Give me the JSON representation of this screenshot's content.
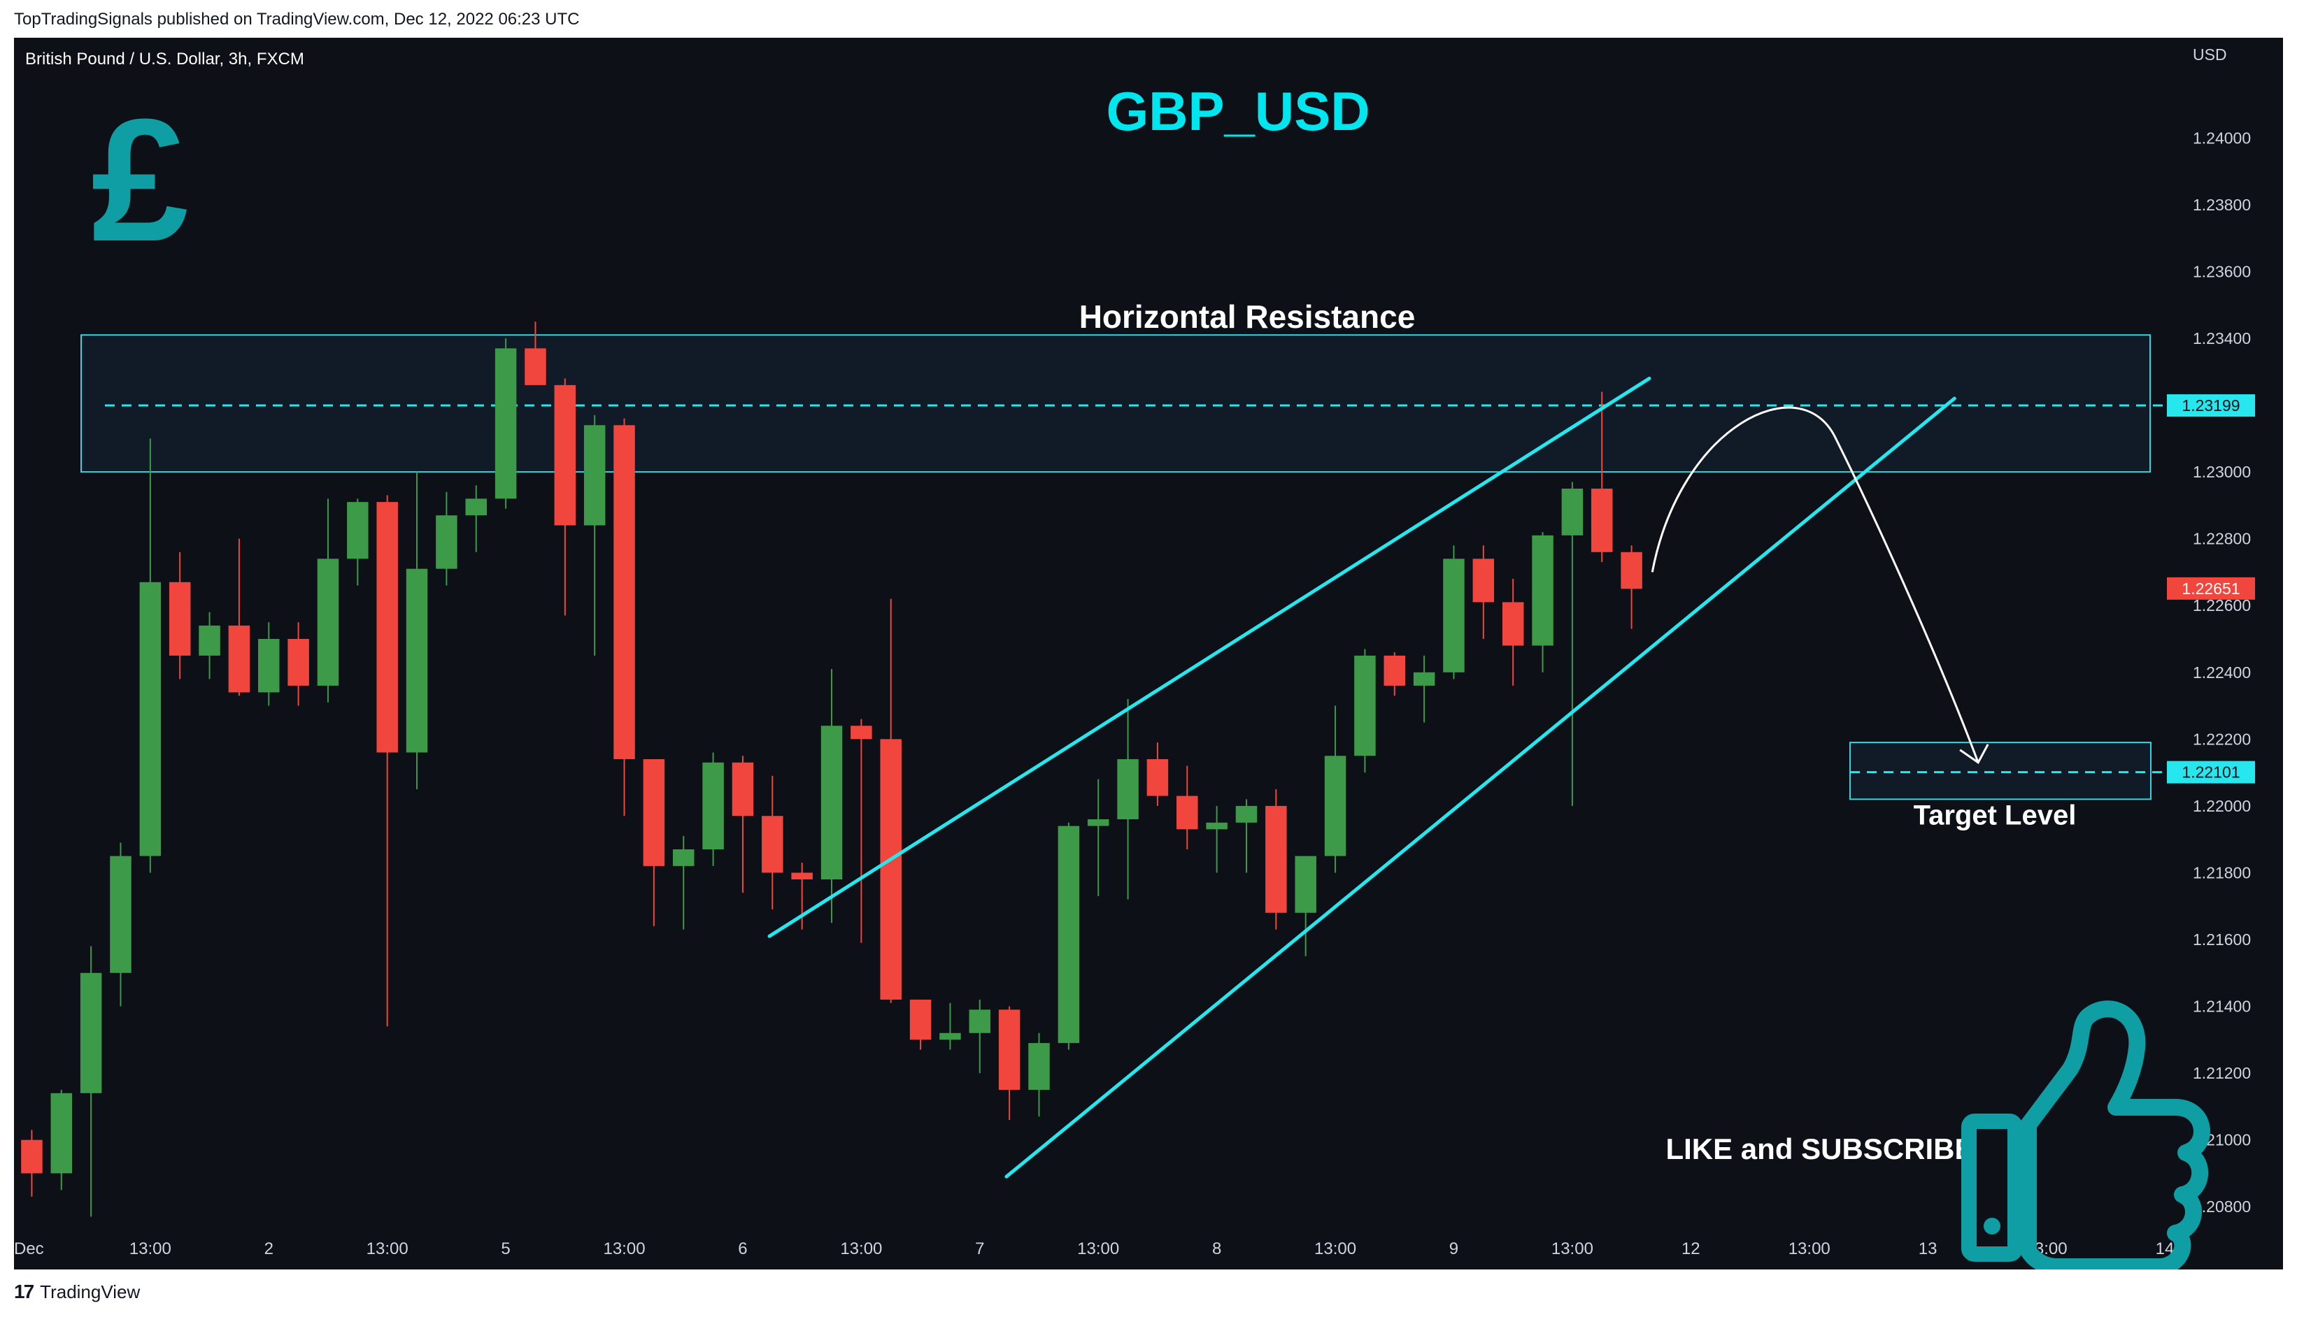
{
  "header": {
    "published_line": "TopTradingSignals published on TradingView.com, Dec 12, 2022 06:23 UTC"
  },
  "footer": {
    "brand_logo": "17",
    "brand_name": "TradingView"
  },
  "colors": {
    "background": "#0d1016",
    "up_candle": "#3d9a48",
    "down_candle": "#f0463e",
    "channel_line": "#27e7ee",
    "zone_border": "#33d6e0",
    "title_color": "#00e6ef",
    "icon_color": "#0f9ea3"
  },
  "chart_data": {
    "type": "candlestick",
    "symbol": "British Pound / U.S. Dollar, 3h, FXCM",
    "title": "GBP_USD",
    "currency": "USD",
    "ylim": [
      1.207,
      1.243
    ],
    "y_ticks": [
      1.208,
      1.21,
      1.212,
      1.214,
      1.216,
      1.218,
      1.22,
      1.222,
      1.224,
      1.226,
      1.228,
      1.23,
      1.232,
      1.234,
      1.236,
      1.238,
      1.24
    ],
    "y_tick_labels": [
      "1.20800",
      "1.21000",
      "1.21200",
      "1.21400",
      "1.21600",
      "1.21800",
      "1.22000",
      "1.22200",
      "1.22400",
      "1.22600",
      "1.22800",
      "1.23000",
      "1.23200",
      "1.23400",
      "1.23600",
      "1.23800",
      "1.24000"
    ],
    "x_range": [
      -0.6,
      72
    ],
    "x_ticks": [
      {
        "i": 0,
        "label": "Dec"
      },
      {
        "i": 4,
        "label": "13:00"
      },
      {
        "i": 8,
        "label": "2"
      },
      {
        "i": 12,
        "label": "13:00"
      },
      {
        "i": 16,
        "label": "5"
      },
      {
        "i": 20,
        "label": "13:00"
      },
      {
        "i": 24,
        "label": "6"
      },
      {
        "i": 28,
        "label": "13:00"
      },
      {
        "i": 32,
        "label": "7"
      },
      {
        "i": 36,
        "label": "13:00"
      },
      {
        "i": 40,
        "label": "8"
      },
      {
        "i": 44,
        "label": "13:00"
      },
      {
        "i": 48,
        "label": "9"
      },
      {
        "i": 52,
        "label": "13:00"
      },
      {
        "i": 56,
        "label": "12"
      },
      {
        "i": 60,
        "label": "13:00"
      },
      {
        "i": 64,
        "label": "13"
      },
      {
        "i": 68,
        "label": "13:00"
      },
      {
        "i": 72,
        "label": "14"
      }
    ],
    "candles": [
      {
        "o": 1.21,
        "h": 1.2103,
        "l": 1.2083,
        "c": 1.209
      },
      {
        "o": 1.209,
        "h": 1.2115,
        "l": 1.2085,
        "c": 1.2114
      },
      {
        "o": 1.2114,
        "h": 1.2158,
        "l": 1.2077,
        "c": 1.215
      },
      {
        "o": 1.215,
        "h": 1.2189,
        "l": 1.214,
        "c": 1.2185
      },
      {
        "o": 1.2185,
        "h": 1.231,
        "l": 1.218,
        "c": 1.2267
      },
      {
        "o": 1.2267,
        "h": 1.2276,
        "l": 1.2238,
        "c": 1.2245
      },
      {
        "o": 1.2245,
        "h": 1.2258,
        "l": 1.2238,
        "c": 1.2254
      },
      {
        "o": 1.2254,
        "h": 1.228,
        "l": 1.2233,
        "c": 1.2234
      },
      {
        "o": 1.2234,
        "h": 1.2255,
        "l": 1.223,
        "c": 1.225
      },
      {
        "o": 1.225,
        "h": 1.2255,
        "l": 1.223,
        "c": 1.2236
      },
      {
        "o": 1.2236,
        "h": 1.2292,
        "l": 1.2231,
        "c": 1.2274
      },
      {
        "o": 1.2274,
        "h": 1.2292,
        "l": 1.2266,
        "c": 1.2291
      },
      {
        "o": 1.2291,
        "h": 1.2293,
        "l": 1.2134,
        "c": 1.2216
      },
      {
        "o": 1.2216,
        "h": 1.23,
        "l": 1.2205,
        "c": 1.2271
      },
      {
        "o": 1.2271,
        "h": 1.2294,
        "l": 1.2266,
        "c": 1.2287
      },
      {
        "o": 1.2287,
        "h": 1.2296,
        "l": 1.2276,
        "c": 1.2292
      },
      {
        "o": 1.2292,
        "h": 1.234,
        "l": 1.2289,
        "c": 1.2337
      },
      {
        "o": 1.2337,
        "h": 1.2345,
        "l": 1.2326,
        "c": 1.2326
      },
      {
        "o": 1.2326,
        "h": 1.2328,
        "l": 1.2257,
        "c": 1.2284
      },
      {
        "o": 1.2284,
        "h": 1.2317,
        "l": 1.2245,
        "c": 1.2314
      },
      {
        "o": 1.2314,
        "h": 1.2316,
        "l": 1.2197,
        "c": 1.2214
      },
      {
        "o": 1.2214,
        "h": 1.2214,
        "l": 1.2164,
        "c": 1.2182
      },
      {
        "o": 1.2182,
        "h": 1.2191,
        "l": 1.2163,
        "c": 1.2187
      },
      {
        "o": 1.2187,
        "h": 1.2216,
        "l": 1.2182,
        "c": 1.2213
      },
      {
        "o": 1.2213,
        "h": 1.2215,
        "l": 1.2174,
        "c": 1.2197
      },
      {
        "o": 1.2197,
        "h": 1.2209,
        "l": 1.2169,
        "c": 1.218
      },
      {
        "o": 1.218,
        "h": 1.2183,
        "l": 1.2163,
        "c": 1.2178
      },
      {
        "o": 1.2178,
        "h": 1.2241,
        "l": 1.2165,
        "c": 1.2224
      },
      {
        "o": 1.2224,
        "h": 1.2226,
        "l": 1.2159,
        "c": 1.222
      },
      {
        "o": 1.222,
        "h": 1.2262,
        "l": 1.2141,
        "c": 1.2142
      },
      {
        "o": 1.2142,
        "h": 1.2142,
        "l": 1.2127,
        "c": 1.213
      },
      {
        "o": 1.213,
        "h": 1.2141,
        "l": 1.2127,
        "c": 1.2132
      },
      {
        "o": 1.2132,
        "h": 1.2142,
        "l": 1.212,
        "c": 1.2139
      },
      {
        "o": 1.2139,
        "h": 1.214,
        "l": 1.2106,
        "c": 1.2115
      },
      {
        "o": 1.2115,
        "h": 1.2132,
        "l": 1.2107,
        "c": 1.2129
      },
      {
        "o": 1.2129,
        "h": 1.2195,
        "l": 1.2127,
        "c": 1.2194
      },
      {
        "o": 1.2194,
        "h": 1.2208,
        "l": 1.2173,
        "c": 1.2196
      },
      {
        "o": 1.2196,
        "h": 1.2232,
        "l": 1.2172,
        "c": 1.2214
      },
      {
        "o": 1.2214,
        "h": 1.2219,
        "l": 1.22,
        "c": 1.2203
      },
      {
        "o": 1.2203,
        "h": 1.2212,
        "l": 1.2187,
        "c": 1.2193
      },
      {
        "o": 1.2193,
        "h": 1.22,
        "l": 1.218,
        "c": 1.2195
      },
      {
        "o": 1.2195,
        "h": 1.2202,
        "l": 1.218,
        "c": 1.22
      },
      {
        "o": 1.22,
        "h": 1.2205,
        "l": 1.2163,
        "c": 1.2168
      },
      {
        "o": 1.2168,
        "h": 1.2183,
        "l": 1.2155,
        "c": 1.2185
      },
      {
        "o": 1.2185,
        "h": 1.223,
        "l": 1.218,
        "c": 1.2215
      },
      {
        "o": 1.2215,
        "h": 1.2247,
        "l": 1.221,
        "c": 1.2245
      },
      {
        "o": 1.2245,
        "h": 1.2246,
        "l": 1.2233,
        "c": 1.2236
      },
      {
        "o": 1.2236,
        "h": 1.2245,
        "l": 1.2225,
        "c": 1.224
      },
      {
        "o": 1.224,
        "h": 1.2278,
        "l": 1.2238,
        "c": 1.2274
      },
      {
        "o": 1.2274,
        "h": 1.2278,
        "l": 1.225,
        "c": 1.2261
      },
      {
        "o": 1.2261,
        "h": 1.2268,
        "l": 1.2236,
        "c": 1.2248
      },
      {
        "o": 1.2248,
        "h": 1.2282,
        "l": 1.224,
        "c": 1.2281
      },
      {
        "o": 1.2281,
        "h": 1.2297,
        "l": 1.22,
        "c": 1.2295
      },
      {
        "o": 1.2295,
        "h": 1.2324,
        "l": 1.2273,
        "c": 1.2276
      },
      {
        "o": 1.2276,
        "h": 1.2278,
        "l": 1.2253,
        "c": 1.2265
      }
    ],
    "resistance_zone": {
      "label": "Horizontal Resistance",
      "from": 1.23,
      "to": 1.2341,
      "level": 1.23199,
      "level_label": "1.23199"
    },
    "target_zone": {
      "label": "Target Level",
      "from": 1.2202,
      "to": 1.2219,
      "level": 1.22101,
      "level_label": "1.22101"
    },
    "last_price": {
      "value": 1.22651,
      "label": "1.22651"
    },
    "channel": {
      "upper": [
        {
          "i": 24.9,
          "p": 1.2161
        },
        {
          "i": 54.6,
          "p": 1.2328
        }
      ],
      "lower": [
        {
          "i": 32.9,
          "p": 1.2089
        },
        {
          "i": 64.9,
          "p": 1.2322
        }
      ]
    },
    "projection_arrow": {
      "from": {
        "i": 54.7,
        "p": 1.227
      },
      "peak": {
        "i": 57.8,
        "p": 1.2323
      },
      "to": {
        "i": 65.7,
        "p": 1.2213
      }
    },
    "annotations": {
      "cta": "LIKE and SUBSCRIBE"
    }
  }
}
